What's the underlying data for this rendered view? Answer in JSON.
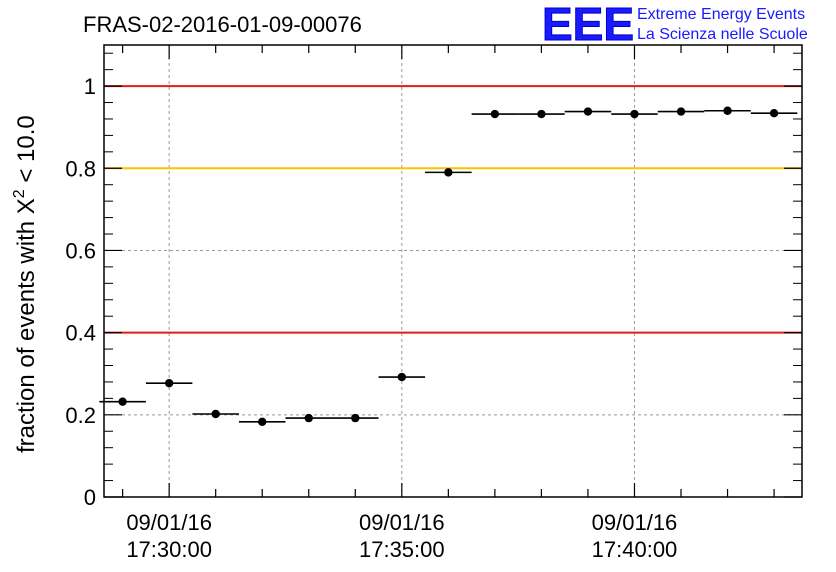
{
  "header": {
    "title": "FRAS-02-2016-01-09-00076",
    "logo_text": "EEE",
    "logo_line1": "Extreme Energy Events",
    "logo_line2": "La Scienza nelle Scuole"
  },
  "chart_data": {
    "type": "scatter",
    "title": "FRAS-02-2016-01-09-00076",
    "ylabel": "fraction of events with Χ² < 10.0",
    "ylabel_parts": [
      "fraction of events with Χ",
      "2",
      " < 10.0"
    ],
    "ylim": [
      0,
      1.1
    ],
    "yticks": [
      0,
      0.2,
      0.4,
      0.6,
      0.8,
      1
    ],
    "ytick_labels": [
      "0",
      "0.2",
      "0.4",
      "0.6",
      "0.8",
      "1"
    ],
    "xlim_minutes": [
      -1.4,
      13.6
    ],
    "xticks": [
      {
        "minute": 0,
        "line1": "09/01/16",
        "line2": "17:30:00"
      },
      {
        "minute": 5,
        "line1": "09/01/16",
        "line2": "17:35:00"
      },
      {
        "minute": 10,
        "line1": "09/01/16",
        "line2": "17:40:00"
      }
    ],
    "grid": true,
    "bin_width_minutes": 1,
    "points": [
      {
        "minute": -1,
        "y": 0.232
      },
      {
        "minute": 0,
        "y": 0.277
      },
      {
        "minute": 1,
        "y": 0.202
      },
      {
        "minute": 2,
        "y": 0.183
      },
      {
        "minute": 3,
        "y": 0.192
      },
      {
        "minute": 4,
        "y": 0.192
      },
      {
        "minute": 5,
        "y": 0.292
      },
      {
        "minute": 6,
        "y": 0.79
      },
      {
        "minute": 7,
        "y": 0.932
      },
      {
        "minute": 8,
        "y": 0.932
      },
      {
        "minute": 9,
        "y": 0.938
      },
      {
        "minute": 10,
        "y": 0.932
      },
      {
        "minute": 11,
        "y": 0.938
      },
      {
        "minute": 12,
        "y": 0.94
      },
      {
        "minute": 13,
        "y": 0.934
      }
    ],
    "reference_lines": [
      {
        "y": 1.0,
        "color": "#e41a1c"
      },
      {
        "y": 0.8,
        "color": "#ffc000"
      },
      {
        "y": 0.4,
        "color": "#e41a1c"
      }
    ],
    "colors": {
      "points": "#000000",
      "grid": "#9a9a9a",
      "logo": "#1a1aff"
    }
  }
}
